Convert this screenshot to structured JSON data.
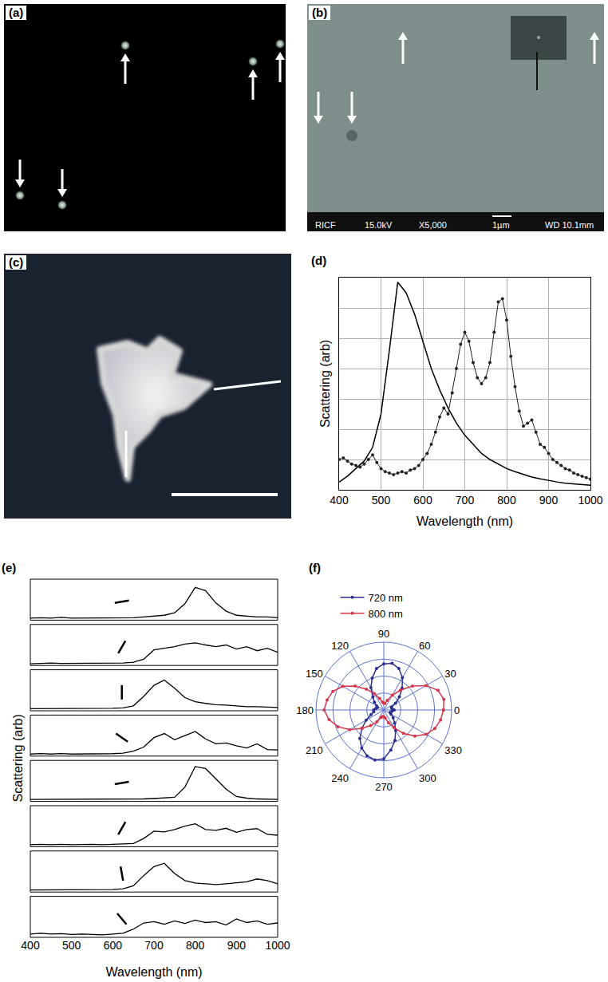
{
  "images": [
    {
      "panel": "(a)"
    },
    {
      "panel": "(b)",
      "caption": [
        "RICF",
        "15.0kV",
        "X5,000",
        "1µm",
        "WD 10.1mm"
      ]
    },
    {
      "panel": "(c)"
    }
  ],
  "chart_data": [
    {
      "type": "line",
      "panel": "(d)",
      "x_label": "Wavelength (nm)",
      "y_label": "Scattering (arb)",
      "xlim": [
        400,
        1000
      ],
      "xticks": [
        400,
        500,
        600,
        700,
        800,
        900,
        1000
      ],
      "ylim": [
        0,
        7
      ],
      "yticks": [
        0,
        1,
        2,
        3,
        4,
        5,
        6,
        7
      ],
      "grid": true,
      "tick_labels": "x",
      "series": [
        {
          "color": "#000000",
          "line_style": "solid",
          "x": [
            400,
            420,
            440,
            460,
            480,
            500,
            520,
            540,
            560,
            580,
            600,
            620,
            640,
            660,
            680,
            700,
            720,
            740,
            760,
            780,
            800,
            820,
            840,
            860,
            880,
            900,
            920,
            940,
            960,
            980,
            1000
          ],
          "values": [
            0.25,
            0.45,
            0.7,
            0.95,
            1.4,
            2.5,
            4.6,
            6.85,
            6.5,
            5.8,
            4.9,
            4.0,
            3.3,
            2.7,
            2.2,
            1.8,
            1.5,
            1.2,
            1.0,
            0.85,
            0.7,
            0.6,
            0.5,
            0.42,
            0.36,
            0.3,
            0.26,
            0.22,
            0.2,
            0.17,
            0.15
          ]
        },
        {
          "color": "#222222",
          "line_style": "solid",
          "marker": "circle",
          "x": [
            400,
            410,
            420,
            430,
            440,
            450,
            460,
            470,
            480,
            490,
            500,
            510,
            520,
            530,
            540,
            550,
            560,
            570,
            580,
            590,
            600,
            610,
            620,
            630,
            640,
            650,
            660,
            670,
            680,
            690,
            700,
            710,
            720,
            730,
            740,
            750,
            760,
            770,
            780,
            790,
            800,
            810,
            820,
            830,
            840,
            850,
            860,
            870,
            880,
            890,
            900,
            910,
            920,
            930,
            940,
            950,
            960,
            970,
            980,
            990,
            1000
          ],
          "values": [
            1.0,
            1.05,
            0.95,
            0.85,
            0.8,
            0.75,
            0.85,
            1.0,
            1.15,
            0.9,
            0.7,
            0.6,
            0.55,
            0.5,
            0.55,
            0.6,
            0.55,
            0.65,
            0.7,
            0.8,
            1.0,
            1.2,
            1.5,
            1.9,
            2.4,
            2.7,
            2.5,
            3.2,
            4.0,
            4.8,
            5.2,
            4.9,
            4.2,
            3.7,
            3.5,
            3.7,
            4.2,
            5.2,
            6.2,
            6.3,
            5.6,
            4.4,
            3.4,
            2.6,
            2.1,
            2.2,
            2.3,
            1.9,
            1.5,
            1.4,
            1.2,
            1.0,
            0.9,
            0.8,
            0.7,
            0.65,
            0.55,
            0.5,
            0.45,
            0.4,
            0.35
          ]
        }
      ]
    },
    {
      "type": "line",
      "panel": "(e)",
      "x_label": "Wavelength (nm)",
      "y_label": "Scattering (arb)",
      "xlim": [
        400,
        1000
      ],
      "xticks": [
        400,
        500,
        600,
        700,
        800,
        900,
        1000
      ],
      "ylim": [
        0,
        1
      ],
      "yticks": [],
      "grid": false,
      "tick_labels": "x",
      "color": "#000000",
      "x": [
        400,
        425,
        450,
        475,
        500,
        525,
        550,
        575,
        600,
        625,
        650,
        675,
        700,
        725,
        750,
        775,
        800,
        825,
        850,
        875,
        900,
        925,
        950,
        975,
        1000
      ],
      "subplots": [
        {
          "polarization": 10,
          "values": [
            0.05,
            0.06,
            0.05,
            0.07,
            0.05,
            0.05,
            0.06,
            0.05,
            0.05,
            0.05,
            0.06,
            0.08,
            0.1,
            0.12,
            0.18,
            0.4,
            0.8,
            0.72,
            0.42,
            0.22,
            0.12,
            0.1,
            0.08,
            0.08,
            0.06
          ]
        },
        {
          "polarization": 60,
          "values": [
            0.04,
            0.05,
            0.06,
            0.05,
            0.05,
            0.06,
            0.05,
            0.06,
            0.05,
            0.06,
            0.08,
            0.15,
            0.38,
            0.42,
            0.46,
            0.52,
            0.55,
            0.5,
            0.46,
            0.5,
            0.4,
            0.46,
            0.36,
            0.42,
            0.32
          ]
        },
        {
          "polarization": 90,
          "values": [
            0.05,
            0.05,
            0.06,
            0.05,
            0.05,
            0.05,
            0.06,
            0.05,
            0.06,
            0.07,
            0.12,
            0.35,
            0.62,
            0.75,
            0.55,
            0.32,
            0.22,
            0.18,
            0.15,
            0.14,
            0.12,
            0.1,
            0.1,
            0.09,
            0.08
          ]
        },
        {
          "polarization": 145,
          "values": [
            0.05,
            0.06,
            0.05,
            0.06,
            0.05,
            0.05,
            0.06,
            0.05,
            0.06,
            0.07,
            0.12,
            0.22,
            0.45,
            0.55,
            0.4,
            0.5,
            0.6,
            0.42,
            0.3,
            0.32,
            0.25,
            0.2,
            0.3,
            0.16,
            0.15
          ]
        },
        {
          "polarization": 10,
          "values": [
            0.05,
            0.05,
            0.06,
            0.05,
            0.05,
            0.05,
            0.05,
            0.05,
            0.05,
            0.05,
            0.05,
            0.06,
            0.07,
            0.08,
            0.1,
            0.35,
            0.85,
            0.8,
            0.55,
            0.3,
            0.12,
            0.08,
            0.06,
            0.05,
            0.05
          ]
        },
        {
          "polarization": 60,
          "values": [
            0.05,
            0.06,
            0.05,
            0.06,
            0.05,
            0.06,
            0.06,
            0.05,
            0.06,
            0.06,
            0.08,
            0.2,
            0.38,
            0.36,
            0.42,
            0.5,
            0.56,
            0.42,
            0.4,
            0.45,
            0.35,
            0.42,
            0.44,
            0.3,
            0.28
          ]
        },
        {
          "polarization": 100,
          "values": [
            0.05,
            0.05,
            0.06,
            0.05,
            0.05,
            0.05,
            0.05,
            0.05,
            0.06,
            0.08,
            0.15,
            0.4,
            0.62,
            0.7,
            0.45,
            0.28,
            0.22,
            0.2,
            0.18,
            0.2,
            0.22,
            0.25,
            0.32,
            0.28,
            0.2
          ]
        },
        {
          "polarization": 130,
          "values": [
            0.08,
            0.1,
            0.08,
            0.09,
            0.07,
            0.08,
            0.07,
            0.06,
            0.08,
            0.1,
            0.2,
            0.35,
            0.38,
            0.32,
            0.4,
            0.34,
            0.42,
            0.36,
            0.38,
            0.3,
            0.45,
            0.36,
            0.4,
            0.32,
            0.35
          ]
        }
      ]
    },
    {
      "type": "polar",
      "panel": "(f)",
      "legend": "top",
      "grid": true,
      "tick_labels": "x",
      "xlim": [
        0,
        360
      ],
      "xticks": [
        0,
        30,
        60,
        90,
        120,
        150,
        180,
        210,
        240,
        270,
        300,
        330
      ],
      "ylim": [
        0,
        1
      ],
      "yticks": [
        0.25,
        0.5,
        0.75,
        1
      ],
      "x": [
        0,
        10,
        20,
        30,
        40,
        50,
        60,
        70,
        80,
        90,
        100,
        110,
        120,
        130,
        140,
        150,
        160,
        170,
        180,
        190,
        200,
        210,
        220,
        230,
        240,
        250,
        260,
        270,
        280,
        290,
        300,
        310,
        320,
        330,
        340,
        350
      ],
      "series": [
        {
          "name": "720 nm",
          "color": "#2b2f8f",
          "marker": "circle",
          "values": [
            0.15,
            0.12,
            0.12,
            0.2,
            0.3,
            0.42,
            0.55,
            0.65,
            0.7,
            0.68,
            0.62,
            0.5,
            0.38,
            0.25,
            0.18,
            0.12,
            0.1,
            0.12,
            0.15,
            0.15,
            0.2,
            0.3,
            0.42,
            0.55,
            0.65,
            0.72,
            0.75,
            0.72,
            0.6,
            0.48,
            0.35,
            0.25,
            0.18,
            0.12,
            0.1,
            0.12
          ]
        },
        {
          "name": "800 nm",
          "color": "#d6364a",
          "marker": "circle",
          "values": [
            0.88,
            0.9,
            0.85,
            0.72,
            0.55,
            0.38,
            0.25,
            0.15,
            0.1,
            0.1,
            0.12,
            0.18,
            0.28,
            0.4,
            0.55,
            0.7,
            0.8,
            0.85,
            0.88,
            0.82,
            0.72,
            0.58,
            0.42,
            0.3,
            0.2,
            0.12,
            0.1,
            0.1,
            0.12,
            0.2,
            0.3,
            0.45,
            0.6,
            0.72,
            0.8,
            0.85
          ]
        }
      ]
    }
  ]
}
